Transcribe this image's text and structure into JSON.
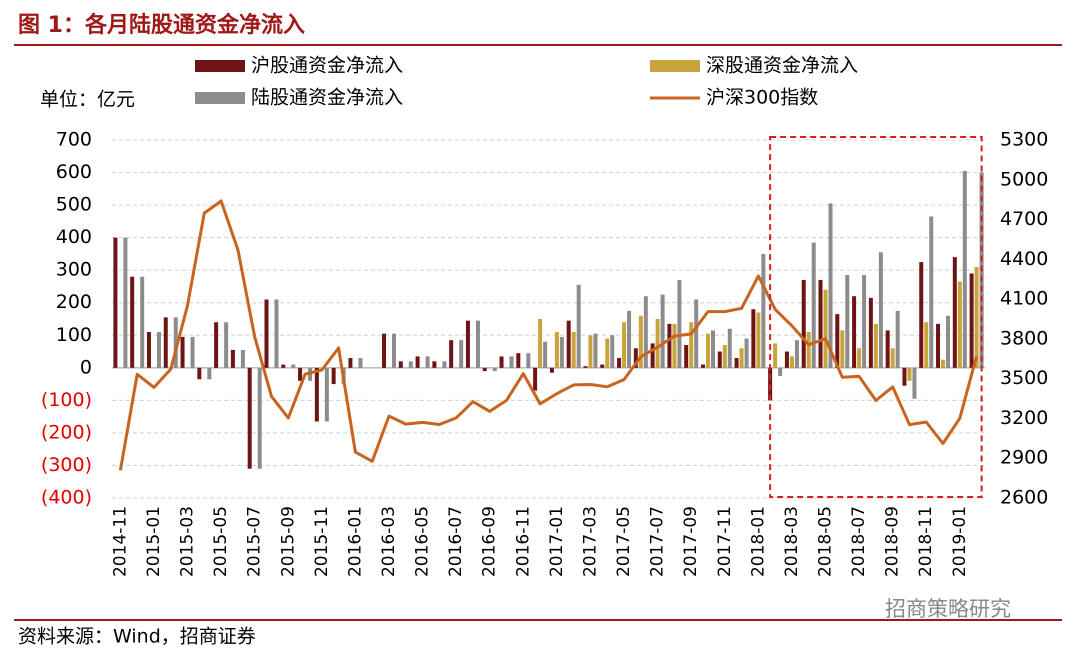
{
  "chart_data": {
    "type": "bar",
    "title": "图 1：各月陆股通资金净流入",
    "unit": "单位：亿元",
    "source": "资料来源：Wind，招商证券",
    "watermark": "招商策略研究",
    "categories": [
      "2014-11",
      null,
      "2015-01",
      null,
      "2015-03",
      null,
      "2015-05",
      null,
      "2015-07",
      null,
      "2015-09",
      null,
      "2015-11",
      null,
      "2016-01",
      null,
      "2016-03",
      null,
      "2016-05",
      null,
      "2016-07",
      null,
      "2016-09",
      null,
      "2016-11",
      null,
      "2017-01",
      null,
      "2017-03",
      null,
      "2017-05",
      null,
      "2017-07",
      null,
      "2017-09",
      null,
      "2017-11",
      null,
      "2018-01",
      null,
      "2018-03",
      null,
      "2018-05",
      null,
      "2018-07",
      null,
      "2018-09",
      null,
      "2018-11",
      null,
      "2019-01",
      null
    ],
    "series": [
      {
        "name": "沪股通资金净流入",
        "color": "#6e1414",
        "values": [
          400,
          280,
          110,
          155,
          95,
          -35,
          140,
          55,
          -310,
          210,
          10,
          -40,
          -165,
          -50,
          30,
          0,
          105,
          20,
          35,
          20,
          85,
          145,
          -10,
          35,
          45,
          -70,
          -15,
          145,
          5,
          10,
          30,
          60,
          75,
          135,
          70,
          10,
          50,
          30,
          180,
          -100,
          50,
          270,
          270,
          165,
          220,
          215,
          115,
          -55,
          325,
          135,
          340,
          290
        ]
      },
      {
        "name": "深股通资金净流入",
        "color": "#c9a43c",
        "values": [
          null,
          null,
          null,
          null,
          null,
          null,
          null,
          null,
          null,
          null,
          null,
          null,
          null,
          null,
          null,
          null,
          null,
          null,
          null,
          null,
          null,
          null,
          null,
          null,
          null,
          150,
          110,
          110,
          100,
          90,
          140,
          160,
          150,
          135,
          140,
          105,
          70,
          60,
          170,
          75,
          35,
          110,
          240,
          115,
          60,
          135,
          60,
          -40,
          140,
          25,
          265,
          310
        ]
      },
      {
        "name": "陆股通资金净流入",
        "color": "#8c8c8c",
        "values": [
          400,
          280,
          110,
          155,
          95,
          -35,
          140,
          55,
          -310,
          210,
          10,
          -40,
          -165,
          -50,
          30,
          0,
          105,
          20,
          35,
          20,
          85,
          145,
          -10,
          35,
          45,
          80,
          95,
          255,
          105,
          100,
          175,
          220,
          225,
          270,
          210,
          115,
          120,
          90,
          350,
          -25,
          85,
          385,
          505,
          285,
          285,
          355,
          175,
          -95,
          465,
          160,
          605,
          600
        ]
      },
      {
        "name": "沪深300指数",
        "type": "line",
        "axis": "y2",
        "color": "#c8641e",
        "values": [
          2808,
          3533,
          3434,
          3572,
          4052,
          4749,
          4840,
          4473,
          3816,
          3366,
          3203,
          3534,
          3566,
          3731,
          2946,
          2877,
          3218,
          3157,
          3170,
          3154,
          3204,
          3327,
          3253,
          3336,
          3538,
          3310,
          3387,
          3453,
          3456,
          3439,
          3493,
          3666,
          3737,
          3822,
          3837,
          4006,
          4006,
          4031,
          4275,
          4023,
          3899,
          3756,
          3802,
          3510,
          3517,
          3335,
          3438,
          3153,
          3173,
          3011,
          3201,
          3670
        ]
      }
    ],
    "ylim": [
      -400,
      700
    ],
    "yticks": [
      {
        "value": -400,
        "label": "(400)"
      },
      {
        "value": -300,
        "label": "(300)"
      },
      {
        "value": -200,
        "label": "(200)"
      },
      {
        "value": -100,
        "label": "(100)"
      },
      0,
      100,
      200,
      300,
      400,
      500,
      600,
      700
    ],
    "y2lim": [
      2600,
      5300
    ],
    "y2ticks": [
      2600,
      2900,
      3200,
      3500,
      3800,
      4100,
      4400,
      4700,
      5000,
      5300
    ],
    "grid": true
  }
}
